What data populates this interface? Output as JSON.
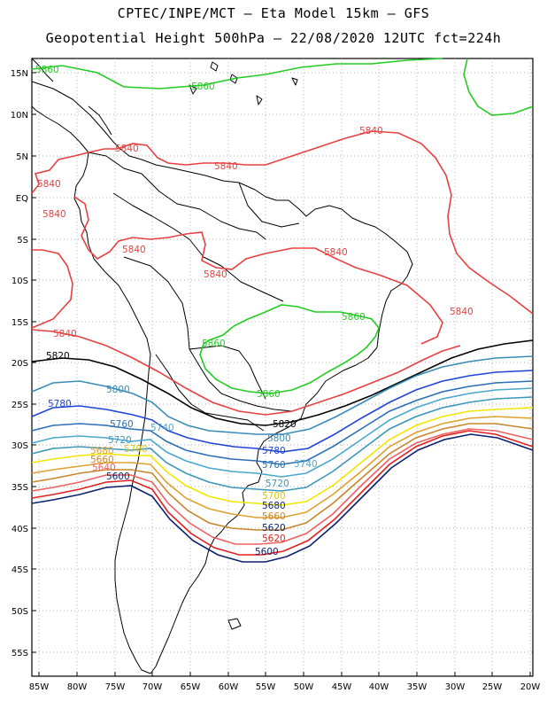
{
  "title": {
    "line1": "CPTEC/INPE/MCT –  Eta Model 15km – GFS",
    "line2": "Geopotential Height 500hPa – 22/08/2020 12UTC fct=224h"
  },
  "axes": {
    "lat_labels": [
      "15N",
      "10N",
      "5N",
      "EQ",
      "5S",
      "10S",
      "15S",
      "20S",
      "25S",
      "30S",
      "35S",
      "40S",
      "45S",
      "50S",
      "55S"
    ],
    "lon_labels": [
      "85W",
      "80W",
      "75W",
      "70W",
      "65W",
      "60W",
      "55W",
      "50W",
      "45W",
      "40W",
      "35W",
      "30W",
      "25W",
      "20W"
    ]
  },
  "colors": {
    "c5860": "#22cc22",
    "c5840": "#e84040",
    "c5820": "#000000",
    "c5800": "#3a8cb8",
    "c5780": "#1f45d8",
    "c5760": "#2a6fb8",
    "c5740": "#49a8cc",
    "c5720": "#3b97b9",
    "c5700": "#f2e600",
    "c5680": "#e0a030",
    "c5660": "#c8862a",
    "c5620": "#e02020",
    "c5600": "#0b1f6e"
  },
  "contour_labels": {
    "l5860a": "5860",
    "l5860b": "5860",
    "l5860c": "5860",
    "l5860d": "5860",
    "l5860e": "5860",
    "l5840a": "5840",
    "l5840b": "5840",
    "l5840c": "5840",
    "l5840d": "5840",
    "l5840e": "5840",
    "l5840f": "5840",
    "l5840g": "5840",
    "l5840h": "5840",
    "l5840i": "5840",
    "l5840j": "5840",
    "l5820a": "5820",
    "l5820b": "5820",
    "l5800a": "5800",
    "l5800b": "5800",
    "l5780a": "5780",
    "l5780b": "5780",
    "l5760a": "5760",
    "l5760b": "5760",
    "l5740a": "5740",
    "l5740b": "5740",
    "l5720a": "5720",
    "l5720b": "5720",
    "l5700a": "5700",
    "l5700b": "5700",
    "l5680a": "5680",
    "l5680b": "5680",
    "l5660a": "5660",
    "l5660b": "5660",
    "l5640a": "5640",
    "l5620a": "5620",
    "l5620b": "5620",
    "l5600a": "5600",
    "l5600b": "5600"
  }
}
